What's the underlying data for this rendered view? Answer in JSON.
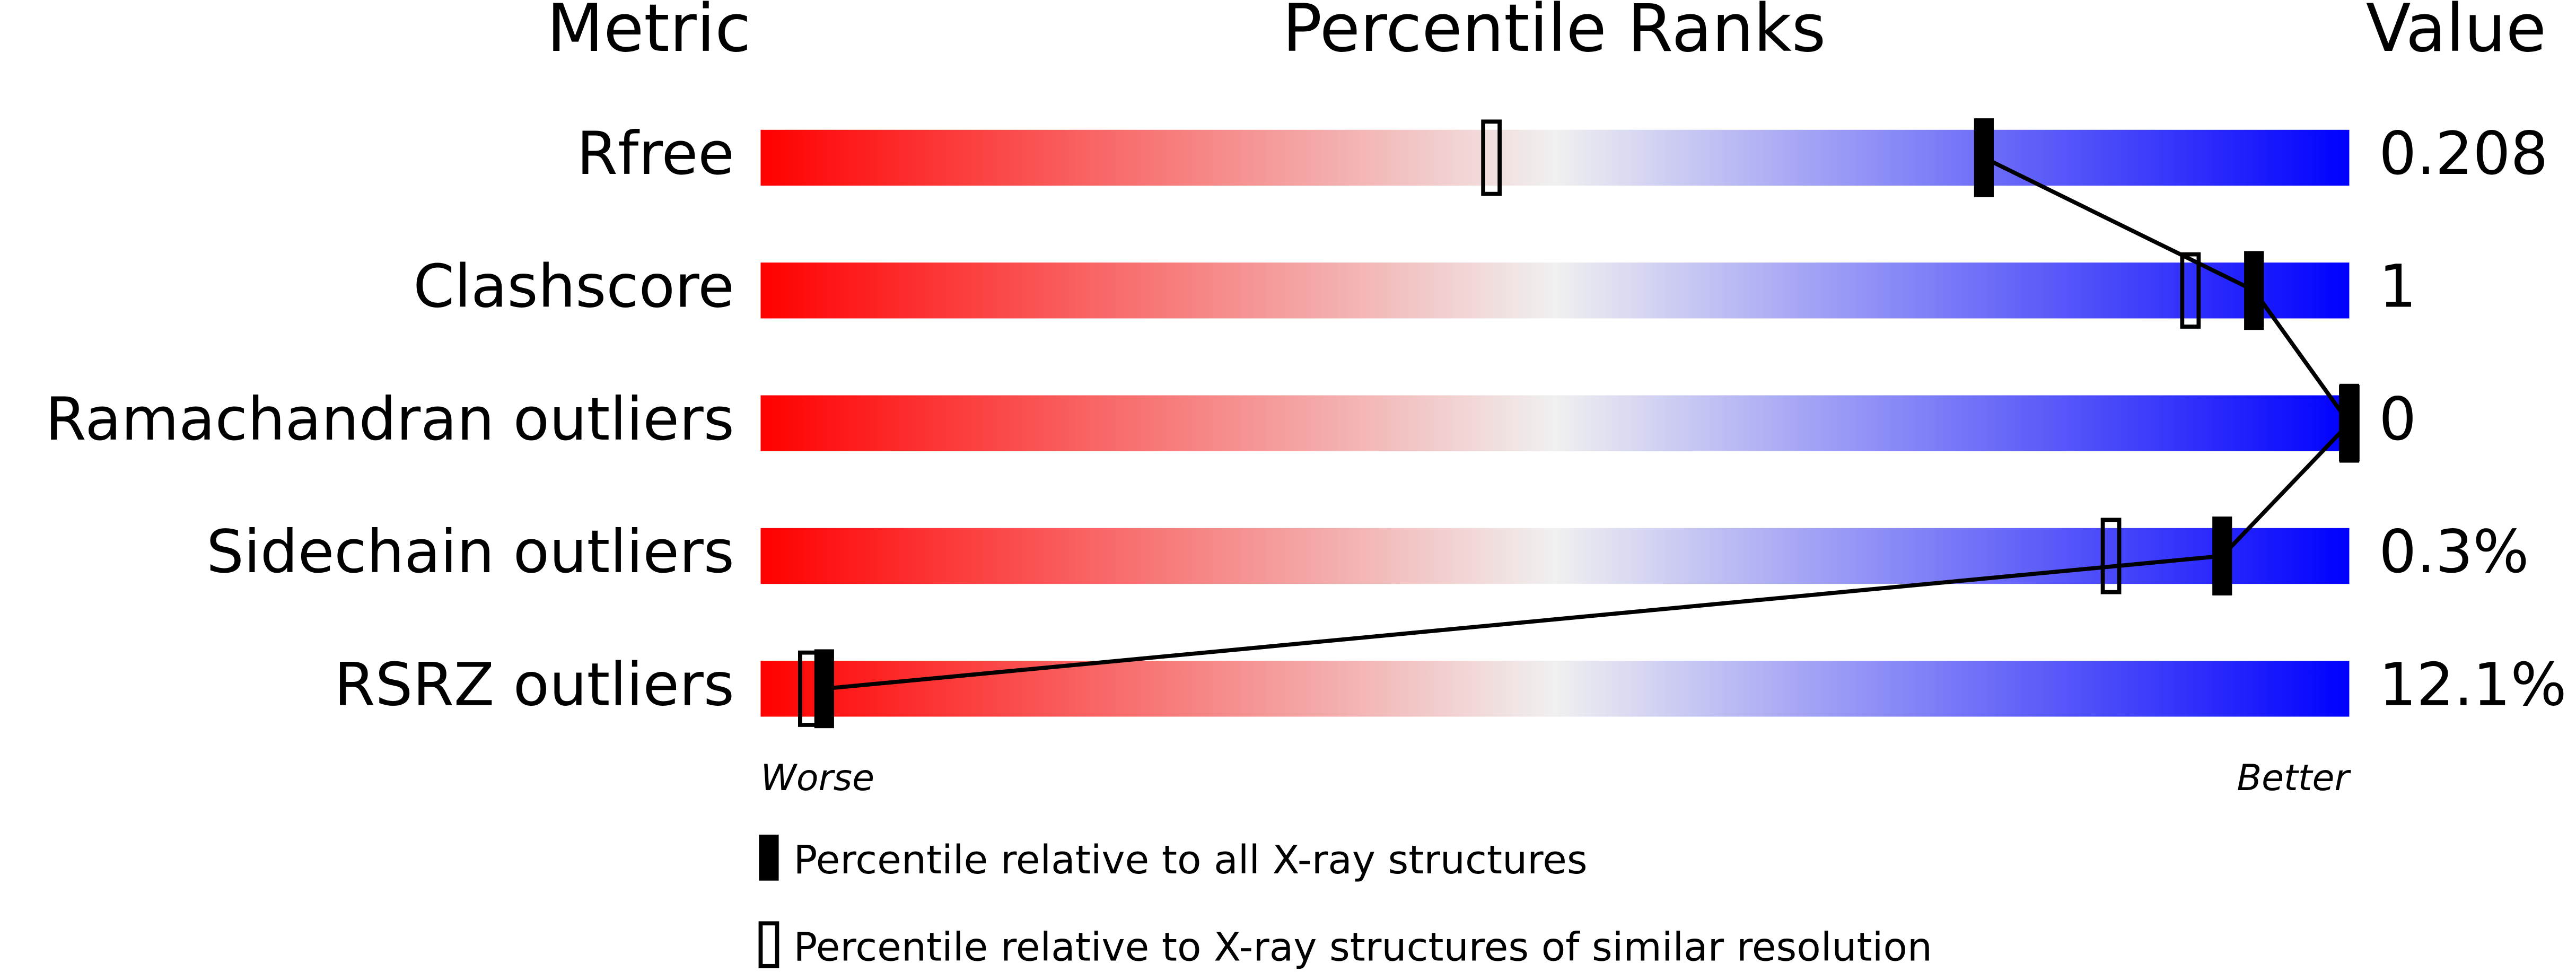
{
  "chart_data": {
    "type": "percentile",
    "headers": [
      "Metric",
      "Percentile Ranks",
      "Value"
    ],
    "categories": [
      "Rfree",
      "Clashscore",
      "Ramachandran outliers",
      "Sidechain outliers",
      "RSRZ outliers"
    ],
    "metric_values": [
      "0.208",
      "1",
      "0",
      "0.3%",
      "12.1%"
    ],
    "series": [
      {
        "name": "Percentile relative to all X-ray structures",
        "color": "#000000",
        "values": [
          77,
          94,
          100,
          92,
          4
        ]
      },
      {
        "name": "Percentile relative to X-ray structures of similar resolution",
        "color": "#000000",
        "values": [
          46,
          90,
          100,
          85,
          3
        ]
      }
    ],
    "xlim": [
      0,
      100
    ],
    "scale_ends": [
      "Worse",
      "Better"
    ],
    "gradient": [
      "#ff0000",
      "#f0f0f0",
      "#0000ff"
    ]
  }
}
